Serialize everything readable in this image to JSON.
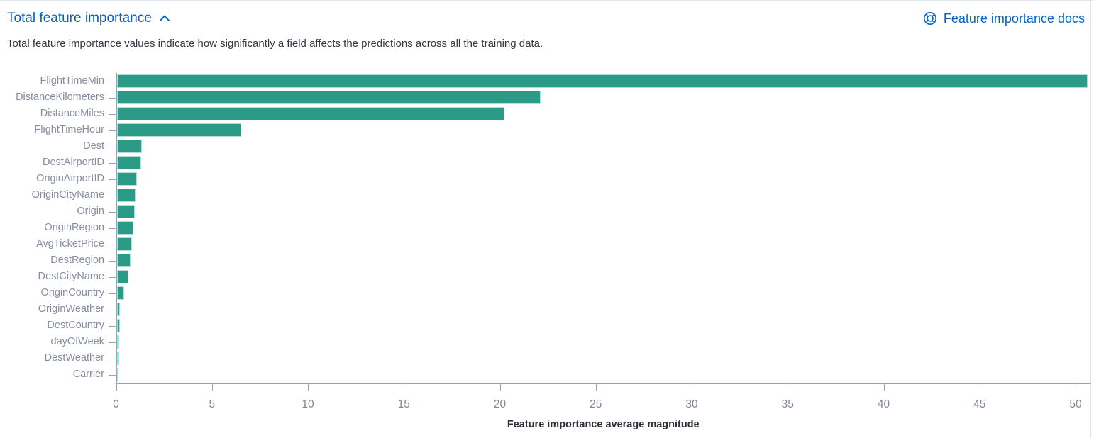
{
  "header": {
    "title": "Total feature importance",
    "docs_link_label": "Feature importance docs"
  },
  "description": {
    "text": "Total feature importance values indicate how significantly a field affects the predictions across all the training data."
  },
  "colors": {
    "bar": "#2b9b88",
    "link_blue": "#0562c5",
    "axis": "#98a2b3",
    "y_label": "#858da0",
    "x_tick_label": "#7f8799",
    "body_text": "#343741"
  },
  "icons": {
    "collapse": "chevron-up-icon",
    "docs": "documentation-icon"
  },
  "chart_data": {
    "type": "bar",
    "orientation": "horizontal",
    "title": "",
    "xlabel": "Feature importance average magnitude",
    "ylabel": "",
    "xlim": [
      0,
      51
    ],
    "xticks": [
      0,
      5,
      10,
      15,
      20,
      25,
      30,
      35,
      40,
      45,
      50
    ],
    "grid": false,
    "legend": false,
    "categories": [
      "FlightTimeMin",
      "DistanceKilometers",
      "DistanceMiles",
      "FlightTimeHour",
      "Dest",
      "DestAirportID",
      "OriginAirportID",
      "OriginCityName",
      "Origin",
      "OriginRegion",
      "AvgTicketPrice",
      "DestRegion",
      "DestCityName",
      "OriginCountry",
      "OriginWeather",
      "DestCountry",
      "dayOfWeek",
      "DestWeather",
      "Carrier"
    ],
    "values": [
      50.6,
      22.1,
      20.2,
      6.5,
      1.33,
      1.28,
      1.06,
      0.97,
      0.95,
      0.87,
      0.8,
      0.72,
      0.62,
      0.4,
      0.18,
      0.15,
      0.13,
      0.12,
      0.04
    ]
  }
}
